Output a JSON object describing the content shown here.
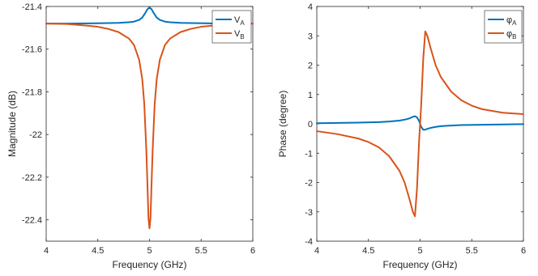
{
  "chart_data": [
    {
      "type": "line",
      "xlabel": "Frequency (GHz)",
      "ylabel": "Magnitude (dB)",
      "xlim": [
        4,
        6
      ],
      "ylim": [
        -22.5,
        -21.4
      ],
      "xticks": [
        4,
        4.5,
        5,
        5.5,
        6
      ],
      "xtick_labels": [
        "4",
        "4.5",
        "5",
        "5.5",
        "6"
      ],
      "yticks": [
        -22.4,
        -22.2,
        -22,
        -21.8,
        -21.6,
        -21.4
      ],
      "ytick_labels": [
        "-22.4",
        "-22.2",
        "-22",
        "-21.8",
        "-21.6",
        "-21.4"
      ],
      "grid": false,
      "legend": "top-right",
      "series": [
        {
          "label_main": "V",
          "label_sub": "A",
          "color": "#0072BD",
          "x": [
            4,
            4.2,
            4.4,
            4.6,
            4.7,
            4.8,
            4.85,
            4.9,
            4.93,
            4.96,
            4.98,
            5,
            5.02,
            5.04,
            5.07,
            5.1,
            5.15,
            5.2,
            5.3,
            5.4,
            5.6,
            5.8,
            6
          ],
          "y": [
            -21.48,
            -21.48,
            -21.479,
            -21.478,
            -21.477,
            -21.474,
            -21.471,
            -21.463,
            -21.452,
            -21.43,
            -21.413,
            -21.405,
            -21.413,
            -21.43,
            -21.452,
            -21.463,
            -21.471,
            -21.474,
            -21.477,
            -21.478,
            -21.479,
            -21.48,
            -21.48
          ]
        },
        {
          "label_main": "V",
          "label_sub": "B",
          "color": "#D95319",
          "x": [
            4,
            4.2,
            4.4,
            4.5,
            4.6,
            4.7,
            4.8,
            4.85,
            4.9,
            4.93,
            4.95,
            4.97,
            4.98,
            4.99,
            5,
            5.01,
            5.02,
            5.03,
            5.05,
            5.07,
            5.1,
            5.15,
            5.2,
            5.3,
            5.4,
            5.5,
            5.6,
            5.8,
            6
          ],
          "y": [
            -21.48,
            -21.482,
            -21.49,
            -21.495,
            -21.505,
            -21.52,
            -21.55,
            -21.58,
            -21.65,
            -21.74,
            -21.86,
            -22.08,
            -22.23,
            -22.39,
            -22.44,
            -22.39,
            -22.23,
            -22.08,
            -21.86,
            -21.74,
            -21.65,
            -21.58,
            -21.55,
            -21.52,
            -21.505,
            -21.495,
            -21.49,
            -21.482,
            -21.48
          ]
        }
      ]
    },
    {
      "type": "line",
      "xlabel": "Frequency (GHz)",
      "ylabel": "Phase (degree)",
      "xlim": [
        4,
        6
      ],
      "ylim": [
        -4,
        4
      ],
      "xticks": [
        4,
        4.5,
        5,
        5.5,
        6
      ],
      "xtick_labels": [
        "4",
        "4.5",
        "5",
        "5.5",
        "6"
      ],
      "yticks": [
        -4,
        -3,
        -2,
        -1,
        0,
        1,
        2,
        3,
        4
      ],
      "ytick_labels": [
        "-4",
        "-3",
        "-2",
        "-1",
        "0",
        "1",
        "2",
        "3",
        "4"
      ],
      "grid": false,
      "legend": "top-right",
      "series": [
        {
          "label_main": "φ",
          "label_sub": "A",
          "color": "#0072BD",
          "x": [
            4,
            4.2,
            4.4,
            4.6,
            4.7,
            4.8,
            4.86,
            4.9,
            4.93,
            4.95,
            4.97,
            4.99,
            5,
            5.01,
            5.03,
            5.05,
            5.07,
            5.1,
            5.14,
            5.2,
            5.3,
            5.4,
            5.6,
            5.8,
            6
          ],
          "y": [
            0.02,
            0.03,
            0.04,
            0.06,
            0.08,
            0.11,
            0.15,
            0.19,
            0.24,
            0.26,
            0.22,
            0.1,
            0,
            -0.1,
            -0.2,
            -0.2,
            -0.17,
            -0.14,
            -0.11,
            -0.08,
            -0.06,
            -0.04,
            -0.03,
            -0.02,
            -0.01
          ]
        },
        {
          "label_main": "φ",
          "label_sub": "B",
          "color": "#D95319",
          "x": [
            4,
            4.2,
            4.4,
            4.5,
            4.6,
            4.7,
            4.8,
            4.85,
            4.9,
            4.93,
            4.95,
            4.97,
            4.99,
            5,
            5.01,
            5.03,
            5.05,
            5.07,
            5.1,
            5.15,
            5.2,
            5.3,
            5.4,
            5.5,
            5.6,
            5.8,
            6
          ],
          "y": [
            -0.25,
            -0.35,
            -0.5,
            -0.62,
            -0.8,
            -1.1,
            -1.6,
            -2.0,
            -2.6,
            -3.0,
            -3.15,
            -2.2,
            -0.6,
            0,
            0.6,
            2.2,
            3.15,
            3.0,
            2.6,
            2.0,
            1.6,
            1.1,
            0.8,
            0.62,
            0.5,
            0.38,
            0.33
          ]
        }
      ]
    }
  ]
}
